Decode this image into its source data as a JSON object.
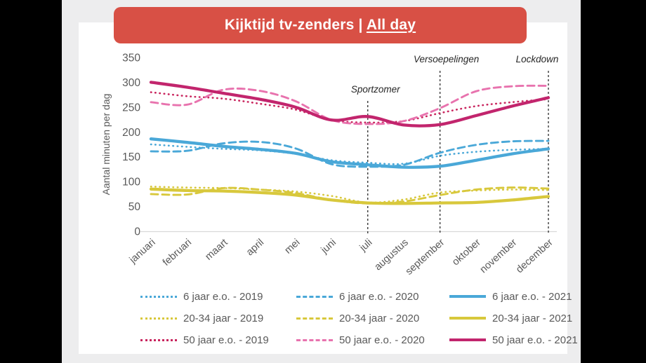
{
  "banner": {
    "title_prefix": "Kijktijd tv-zenders | ",
    "title_underlined": "All day",
    "bg": "#d85045",
    "text_color": "#ffffff"
  },
  "colors": {
    "page_bg": "#ededee",
    "panel_bg": "#ffffff",
    "axis_line": "#d9d9d9",
    "tick_text": "#595959",
    "annotation_line": "#3a3a3a",
    "blue": "#4AA8D8",
    "yellow": "#D8C83C",
    "pink_dark": "#C2256D",
    "pink_light": "#E873AE"
  },
  "chart_data": {
    "type": "line",
    "title": "Kijktijd tv-zenders | All day",
    "xlabel": "",
    "ylabel": "Aantal minuten per dag",
    "ylim": [
      0,
      350
    ],
    "ytick_step": 50,
    "grid": false,
    "legend_position": "bottom",
    "categories": [
      "januari",
      "februari",
      "maart",
      "april",
      "mei",
      "juni",
      "juli",
      "augustus",
      "september",
      "oktober",
      "november",
      "december"
    ],
    "series": [
      {
        "name": "6 jaar e.o. - 2019",
        "color": "#4AA8D8",
        "style": "dotted",
        "values": [
          175,
          170,
          166,
          163,
          156,
          143,
          138,
          136,
          152,
          160,
          164,
          166
        ]
      },
      {
        "name": "6 jaar e.o. - 2020",
        "color": "#4AA8D8",
        "style": "dashed",
        "values": [
          161,
          162,
          177,
          180,
          167,
          135,
          130,
          134,
          158,
          174,
          181,
          182
        ]
      },
      {
        "name": "6 jaar e.o. - 2021",
        "color": "#4AA8D8",
        "style": "solid",
        "values": [
          186,
          179,
          171,
          165,
          157,
          140,
          134,
          129,
          131,
          143,
          156,
          166
        ]
      },
      {
        "name": "20-34 jaar - 2019",
        "color": "#D8C83C",
        "style": "dotted",
        "values": [
          90,
          88,
          87,
          84,
          80,
          71,
          58,
          64,
          78,
          82,
          84,
          83
        ]
      },
      {
        "name": "20-34 jaar - 2020",
        "color": "#D8C83C",
        "style": "dashed",
        "values": [
          75,
          74,
          87,
          84,
          77,
          63,
          56,
          60,
          73,
          84,
          88,
          86
        ]
      },
      {
        "name": "20-34 jaar - 2021",
        "color": "#D8C83C",
        "style": "solid",
        "values": [
          85,
          82,
          81,
          78,
          73,
          63,
          57,
          56,
          57,
          58,
          63,
          70
        ]
      },
      {
        "name": "50 jaar e.o. - 2019",
        "color": "#C9255E",
        "style": "dotted",
        "values": [
          280,
          272,
          267,
          257,
          245,
          224,
          219,
          222,
          238,
          252,
          260,
          266
        ]
      },
      {
        "name": "50 jaar e.o. - 2020",
        "color": "#E873AE",
        "style": "dashed",
        "values": [
          260,
          255,
          285,
          283,
          262,
          224,
          216,
          222,
          248,
          282,
          292,
          293
        ]
      },
      {
        "name": "50 jaar e.o. - 2021",
        "color": "#C2256D",
        "style": "solid",
        "values": [
          300,
          290,
          278,
          266,
          250,
          224,
          231,
          214,
          215,
          233,
          252,
          269
        ]
      }
    ],
    "annotations": [
      {
        "label": "Sportzomer",
        "month": "juli",
        "x_index": 6,
        "label_y": 100,
        "label_dx": 11
      },
      {
        "label": "Versoepelingen",
        "month": "september",
        "x_index": 8,
        "label_y": 57,
        "label_dx": 9
      },
      {
        "label": "Lockdown",
        "month": "december",
        "x_index": 11,
        "label_y": 57,
        "label_dx": -16
      }
    ]
  }
}
